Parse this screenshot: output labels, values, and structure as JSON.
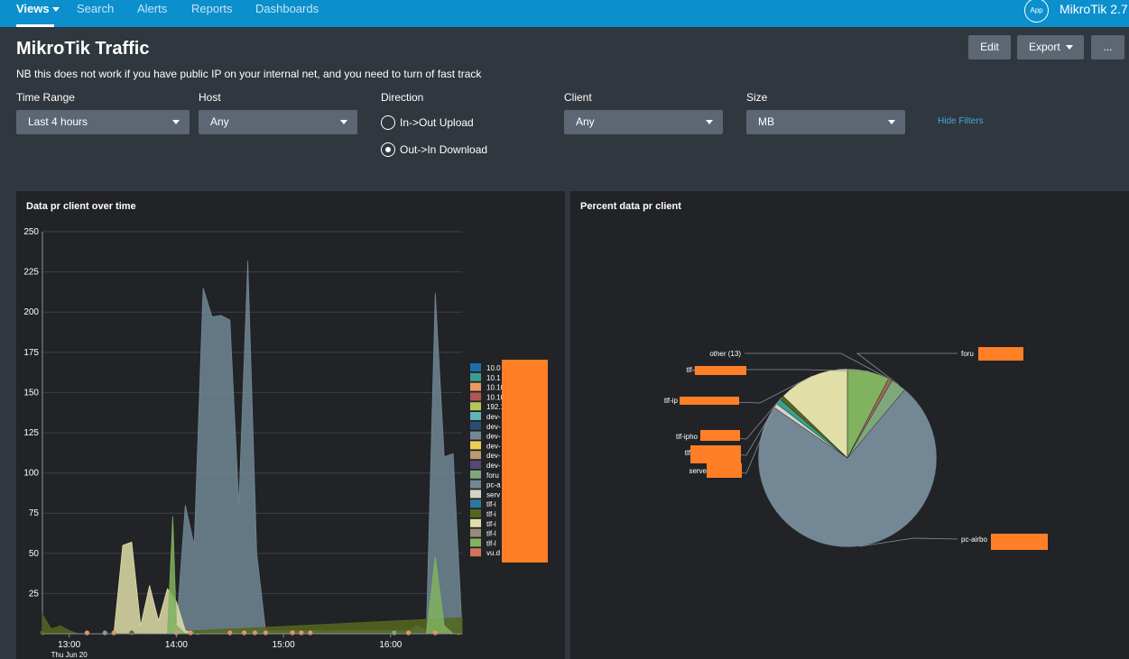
{
  "nav": {
    "items": [
      "Views",
      "Search",
      "Alerts",
      "Reports",
      "Dashboards"
    ],
    "active_index": 0,
    "app_badge": "App",
    "app_name": "MikroTik 2.7"
  },
  "header": {
    "title": "MikroTik Traffic",
    "description": "NB this does not work if you have public IP on your internal net, and you need to turn of fast track",
    "edit_label": "Edit",
    "export_label": "Export",
    "more_label": "..."
  },
  "filters": {
    "time_range": {
      "label": "Time Range",
      "value": "Last 4 hours"
    },
    "host": {
      "label": "Host",
      "value": "Any"
    },
    "direction": {
      "label": "Direction",
      "options": [
        "In->Out Upload",
        "Out->In Download"
      ],
      "selected_index": 1
    },
    "client": {
      "label": "Client",
      "value": "Any"
    },
    "size": {
      "label": "Size",
      "value": "MB"
    },
    "hide_filters_label": "Hide Filters"
  },
  "area_panel": {
    "title": "Data pr client over time"
  },
  "pie_panel": {
    "title": "Percent data pr client"
  },
  "colors": {
    "redaction": "#ff7f27",
    "accent": "#0b8fcd",
    "link": "#3fa9e6"
  },
  "chart_data": [
    {
      "type": "area",
      "title": "Data pr client over time",
      "xlabel": "",
      "ylabel": "",
      "ylim": [
        0,
        250
      ],
      "yticks": [
        25,
        50,
        75,
        100,
        125,
        150,
        175,
        200,
        225,
        250
      ],
      "x_ticks": [
        "13:00",
        "14:00",
        "15:00",
        "16:00"
      ],
      "x_sub": "Thu Jun 20",
      "x_range_minutes": [
        765,
        1000
      ],
      "grid": true,
      "legend_position": "right",
      "series": [
        {
          "name": "10.0",
          "color": "#1e6fa5",
          "x": [],
          "y": []
        },
        {
          "name": "10.1",
          "color": "#3a9f8f",
          "x": [],
          "y": []
        },
        {
          "name": "10.10",
          "color": "#ec9960",
          "x": [],
          "y": []
        },
        {
          "name": "10.10",
          "color": "#af575a",
          "x": [],
          "y": []
        },
        {
          "name": "192.1",
          "color": "#b6c75a",
          "x": [],
          "y": []
        },
        {
          "name": "dev-",
          "color": "#62b3b2",
          "x": [],
          "y": []
        },
        {
          "name": "dev-",
          "color": "#294e70",
          "x": [],
          "y": []
        },
        {
          "name": "dev-",
          "color": "#738795",
          "x": [],
          "y": []
        },
        {
          "name": "dev-",
          "color": "#edd051",
          "x": [],
          "y": []
        },
        {
          "name": "dev-",
          "color": "#bd9872",
          "x": [],
          "y": []
        },
        {
          "name": "dev-",
          "color": "#5a4575",
          "x": [],
          "y": []
        },
        {
          "name": "foru",
          "color": "#7ea77b",
          "x": [],
          "y": []
        },
        {
          "name": "pc-a",
          "color": "#708794",
          "x": [
            765,
            770,
            775,
            780,
            785,
            790,
            795,
            800,
            805,
            808,
            811,
            815,
            818,
            822,
            825,
            829,
            833,
            837,
            840,
            845,
            850,
            855,
            860,
            865,
            870,
            875,
            880,
            885,
            890,
            895,
            900,
            905,
            910,
            915,
            920,
            925,
            930,
            935,
            940,
            945,
            950,
            955,
            960,
            965,
            970,
            975,
            980,
            985,
            990,
            995,
            1000
          ],
          "y": [
            0,
            0,
            0,
            0,
            0,
            0,
            0,
            0,
            0,
            0,
            0,
            0,
            0,
            0,
            0,
            0,
            0,
            0,
            2,
            80,
            55,
            215,
            197,
            198,
            195,
            80,
            232,
            50,
            2,
            2,
            2,
            2,
            2,
            2,
            2,
            2,
            2,
            2,
            2,
            2,
            2,
            2,
            2,
            2,
            2,
            5,
            2,
            212,
            110,
            112,
            3
          ]
        },
        {
          "name": "serv",
          "color": "#d6d5c5",
          "x": [],
          "y": []
        },
        {
          "name": "tlf-i",
          "color": "#2a7a9d",
          "x": [],
          "y": []
        },
        {
          "name": "tlf-i",
          "color": "#55661e",
          "x": [
            765,
            770,
            775,
            780,
            785,
            790,
            795,
            800,
            805,
            810,
            815,
            1000
          ],
          "y": [
            12,
            3,
            5,
            2,
            0,
            0,
            0,
            0,
            0,
            0,
            0,
            10
          ]
        },
        {
          "name": "tlf-i",
          "color": "#e1dea8",
          "x": [
            805,
            810,
            815,
            820,
            825,
            830,
            835,
            840,
            845,
            850
          ],
          "y": [
            0,
            55,
            57,
            5,
            30,
            8,
            28,
            20,
            2,
            0
          ]
        },
        {
          "name": "tlf-l",
          "color": "#978b75",
          "x": [],
          "y": []
        },
        {
          "name": "tlf-l",
          "color": "#80b25f",
          "x": [
            835,
            838,
            840,
            845,
            980,
            985,
            990,
            995
          ],
          "y": [
            0,
            73,
            5,
            0,
            0,
            48,
            5,
            0
          ]
        },
        {
          "name": "vu.d",
          "color": "#d4725e",
          "x": [],
          "y": []
        }
      ]
    },
    {
      "type": "pie",
      "title": "Percent data pr client",
      "slices": [
        {
          "label": "pc-airbo",
          "value": 73.5,
          "color": "#738795"
        },
        {
          "label": "serve",
          "value": 0.8,
          "color": "#d6d5c5"
        },
        {
          "label": "tlf",
          "value": 1.0,
          "color": "#3a9f8f"
        },
        {
          "label": "tlf-ipho",
          "value": 0.8,
          "color": "#55661e"
        },
        {
          "label": "tlf-ip",
          "value": 12.8,
          "color": "#e1dea8"
        },
        {
          "label": "tlf-i",
          "value": 7.6,
          "color": "#80b25f"
        },
        {
          "label": "other (13)",
          "value": 0.7,
          "color": "#a06a55"
        },
        {
          "label": "foru",
          "value": 2.8,
          "color": "#7ea77b"
        }
      ]
    }
  ]
}
